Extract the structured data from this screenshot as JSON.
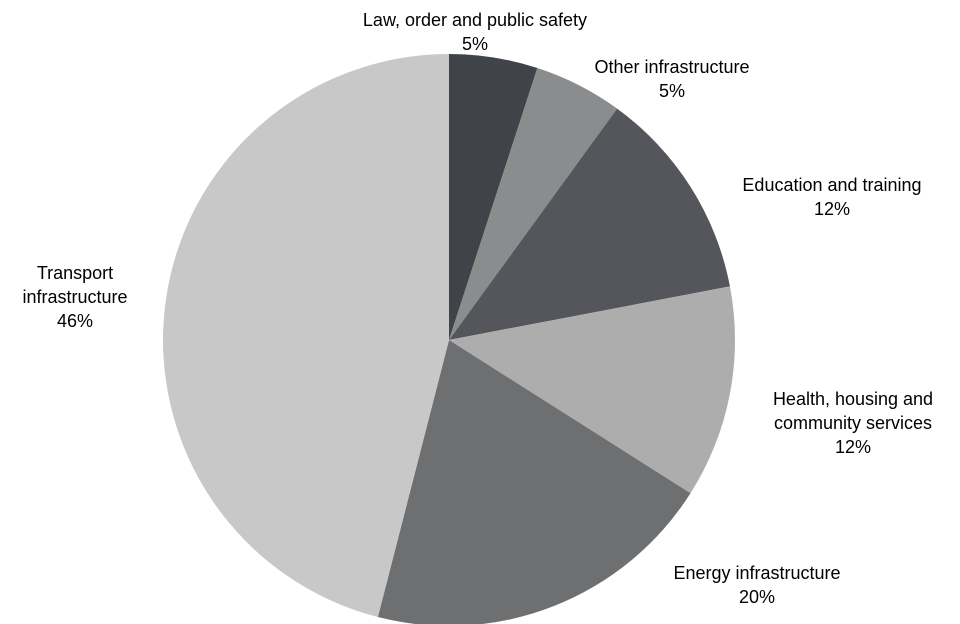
{
  "chart_data": {
    "type": "pie",
    "title": "",
    "start_angle_deg": 0,
    "direction": "clockwise",
    "slices": [
      {
        "label": [
          "Law, order and public safety"
        ],
        "value_label": "5%",
        "value": 5,
        "color": "#404448"
      },
      {
        "label": [
          "Other infrastructure"
        ],
        "value_label": "5%",
        "value": 5,
        "color": "#8a8c8d"
      },
      {
        "label": [
          "Education and training"
        ],
        "value_label": "12%",
        "value": 12,
        "color": "#55565b"
      },
      {
        "label": [
          "Health, housing and",
          "community services"
        ],
        "value_label": "12%",
        "value": 12,
        "color": "#adadae"
      },
      {
        "label": [
          "Energy infrastructure"
        ],
        "value_label": "20%",
        "value": 20,
        "color": "#6e6f71"
      },
      {
        "label": [
          "Transport",
          "infrastructure"
        ],
        "value_label": "46%",
        "value": 46,
        "color": "#c8c8c8"
      }
    ]
  }
}
